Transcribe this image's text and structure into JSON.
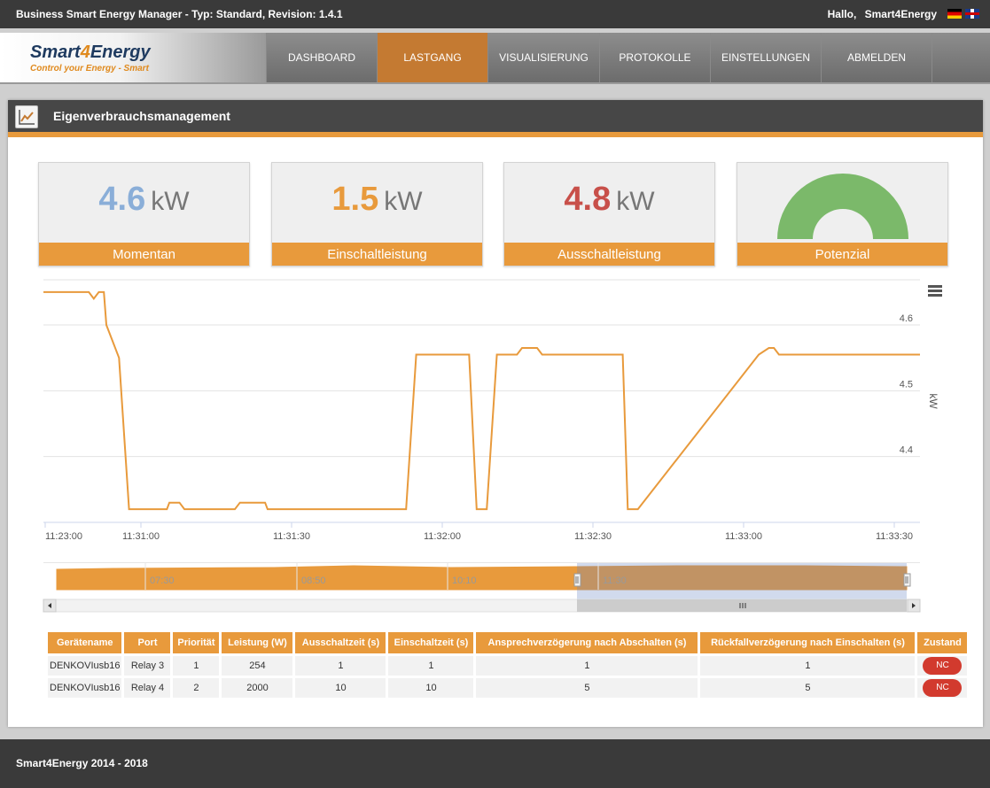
{
  "topbar": {
    "title": "Business Smart Energy Manager - Typ: Standard, Revision: 1.4.1",
    "greeting": "Hallo,",
    "user": "Smart4Energy",
    "flags": [
      "de-flag-icon",
      "uk-flag-icon"
    ]
  },
  "logo": {
    "name_a": "Smart",
    "name_b": "4",
    "name_c": "Energy",
    "tagline": "Control your Energy - Smart"
  },
  "nav": {
    "items": [
      {
        "label": "DASHBOARD",
        "active": false
      },
      {
        "label": "LASTGANG",
        "active": true
      },
      {
        "label": "VISUALISIERUNG",
        "active": false
      },
      {
        "label": "PROTOKOLLE",
        "active": false
      },
      {
        "label": "EINSTELLUNGEN",
        "active": false
      },
      {
        "label": "ABMELDEN",
        "active": false
      }
    ]
  },
  "panel": {
    "title": "Eigenverbrauchsmanagement",
    "icon": "line-chart-icon"
  },
  "cards": [
    {
      "value": "4.6",
      "unit": "kW",
      "label": "Momentan",
      "color": "#8aaed8"
    },
    {
      "value": "1.5",
      "unit": "kW",
      "label": "Einschaltleistung",
      "color": "#e89a3c"
    },
    {
      "value": "4.8",
      "unit": "kW",
      "label": "Ausschaltleistung",
      "color": "#c8504a"
    },
    {
      "value": "",
      "unit": "",
      "label": "Potenzial",
      "color": "#7bb96a",
      "gauge_fraction": 1.0
    }
  ],
  "chart_data": {
    "type": "line",
    "title": "",
    "xlabel": "",
    "ylabel": "kW",
    "x_ticks": [
      "11:23:00",
      "11:31:00",
      "11:31:30",
      "11:32:00",
      "11:32:30",
      "11:33:00",
      "11:33:30"
    ],
    "y_ticks": [
      4.4,
      4.5,
      4.6
    ],
    "ylim": [
      4.3,
      4.67
    ],
    "grid": true,
    "series_color": "#e89a3c",
    "series": [
      {
        "x_seconds_after_1130": [
          30,
          39,
          40,
          41,
          42,
          42.5,
          45,
          47,
          48,
          51,
          53,
          54.5,
          55,
          57,
          58,
          60,
          61,
          68,
          69,
          74,
          74.5,
          76,
          82,
          84,
          85,
          90,
          101,
          102,
          104,
          104.5,
          105,
          105.5,
          107,
          112,
          114,
          114.5,
          116,
          117.5,
          118,
          120,
          121,
          122,
          124,
          125,
          126,
          128,
          129,
          130,
          145,
          146,
          147,
          148,
          172,
          174,
          175,
          176,
          204
        ],
        "y": [
          4.65,
          4.65,
          4.64,
          4.65,
          4.65,
          4.6,
          4.55,
          4.32,
          4.32,
          4.32,
          4.32,
          4.32,
          4.33,
          4.33,
          4.32,
          4.32,
          4.32,
          4.32,
          4.33,
          4.33,
          4.32,
          4.32,
          4.32,
          4.32,
          4.32,
          4.32,
          4.32,
          4.32,
          4.555,
          4.555,
          4.555,
          4.555,
          4.555,
          4.555,
          4.555,
          4.555,
          4.32,
          4.32,
          4.32,
          4.555,
          4.555,
          4.555,
          4.555,
          4.565,
          4.565,
          4.565,
          4.555,
          4.555,
          4.555,
          4.32,
          4.32,
          4.32,
          4.555,
          4.565,
          4.565,
          4.555,
          4.555
        ]
      }
    ],
    "navigator_ticks": [
      "07:30",
      "08:50",
      "10:10",
      "11:30"
    ],
    "menu_icon": "hamburger-menu-icon"
  },
  "table": {
    "headers": [
      "Gerätename",
      "Port",
      "Priorität",
      "Leistung (W)",
      "Ausschaltzeit (s)",
      "Einschaltzeit (s)",
      "Ansprechverzögerung nach Abschalten (s)",
      "Rückfallverzögerung nach Einschalten (s)",
      "Zustand"
    ],
    "rows": [
      [
        "DENKOVIusb16",
        "Relay 3",
        "1",
        "254",
        "1",
        "1",
        "1",
        "1",
        "NC"
      ],
      [
        "DENKOVIusb16",
        "Relay 4",
        "2",
        "2000",
        "10",
        "10",
        "5",
        "5",
        "NC"
      ]
    ]
  },
  "footer": {
    "text": "Smart4Energy 2014 - 2018"
  }
}
